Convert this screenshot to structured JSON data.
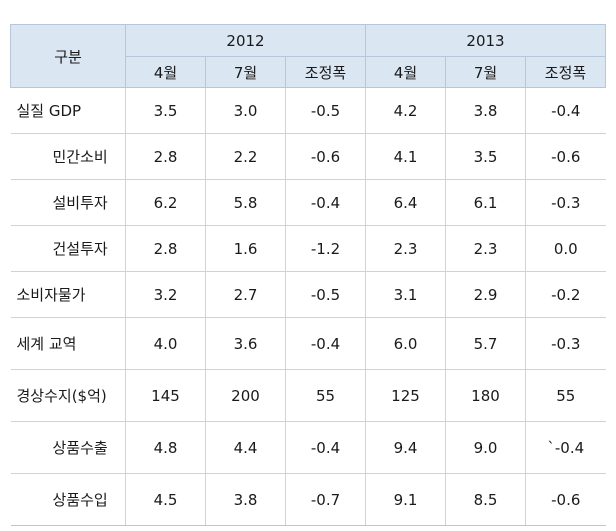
{
  "header": {
    "corner": "구분",
    "years": [
      "2012",
      "2013"
    ],
    "sub": [
      "4월",
      "7월",
      "조정폭",
      "4월",
      "7월",
      "조정폭"
    ]
  },
  "rows": [
    {
      "label": "실질 GDP",
      "values": [
        "3.5",
        "3.0",
        "-0.5",
        "4.2",
        "3.8",
        "-0.4"
      ]
    },
    {
      "label": "민간소비",
      "values": [
        "2.8",
        "2.2",
        "-0.6",
        "4.1",
        "3.5",
        "-0.6"
      ]
    },
    {
      "label": "설비투자",
      "values": [
        "6.2",
        "5.8",
        "-0.4",
        "6.4",
        "6.1",
        "-0.3"
      ]
    },
    {
      "label": "건설투자",
      "values": [
        "2.8",
        "1.6",
        "-1.2",
        "2.3",
        "2.3",
        "0.0"
      ]
    },
    {
      "label": "소비자물가",
      "values": [
        "3.2",
        "2.7",
        "-0.5",
        "3.1",
        "2.9",
        "-0.2"
      ]
    },
    {
      "label": "세계 교역",
      "values": [
        "4.0",
        "3.6",
        "-0.4",
        "6.0",
        "5.7",
        "-0.3"
      ]
    },
    {
      "label": "경상수지($억)",
      "values": [
        "145",
        "200",
        "55",
        "125",
        "180",
        "55"
      ]
    },
    {
      "label": "상품수출",
      "values": [
        "4.8",
        "4.4",
        "-0.4",
        "9.4",
        "9.0",
        "`-0.4"
      ]
    },
    {
      "label": "상품수입",
      "values": [
        "4.5",
        "3.8",
        "-0.7",
        "9.1",
        "8.5",
        "-0.6"
      ]
    }
  ]
}
